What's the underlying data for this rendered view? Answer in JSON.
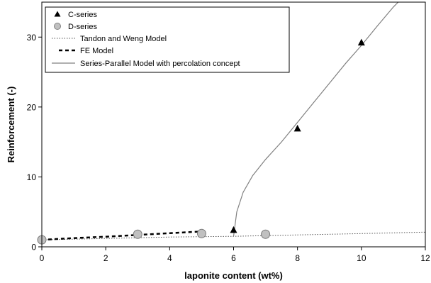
{
  "chart_data": {
    "type": "scatter",
    "title": "",
    "xlabel": "laponite content (wt%)",
    "ylabel": "Reinforcement (-)",
    "xlim": [
      0,
      12
    ],
    "ylim": [
      0,
      35
    ],
    "xticks": [
      0,
      2,
      4,
      6,
      8,
      10,
      12
    ],
    "yticks": [
      0,
      10,
      20,
      30
    ],
    "grid": false,
    "legend_position": "top-left",
    "series": [
      {
        "name": "C-series",
        "kind": "marker",
        "marker": "triangle",
        "color": "#000000",
        "x": [
          6,
          8,
          10
        ],
        "y": [
          2.4,
          16.9,
          29.2
        ]
      },
      {
        "name": "D-series",
        "kind": "marker",
        "marker": "circle",
        "color": "#c0c0c0",
        "x": [
          0,
          3,
          5,
          7
        ],
        "y": [
          1.0,
          1.8,
          1.9,
          1.8
        ]
      },
      {
        "name": "Tandon and Weng Model",
        "kind": "line",
        "style": "dotted",
        "color": "#555555",
        "x": [
          0,
          1,
          2,
          3,
          4,
          5,
          6,
          7,
          8,
          9,
          10,
          11,
          12
        ],
        "y": [
          1.0,
          1.1,
          1.2,
          1.3,
          1.4,
          1.45,
          1.5,
          1.6,
          1.7,
          1.8,
          1.9,
          2.0,
          2.1
        ]
      },
      {
        "name": "FE Model",
        "kind": "line",
        "style": "dashed",
        "color": "#000000",
        "x": [
          0,
          1,
          2,
          3,
          4,
          5
        ],
        "y": [
          1.0,
          1.25,
          1.45,
          1.7,
          1.95,
          2.2
        ]
      },
      {
        "name": "Series-Parallel Model with percolation concept",
        "kind": "line",
        "style": "solid",
        "color": "#808080",
        "x": [
          6.0,
          6.1,
          6.3,
          6.6,
          7.0,
          7.5,
          8.0,
          8.5,
          9.0,
          9.5,
          10.0,
          10.5,
          11.0,
          11.15
        ],
        "y": [
          1.5,
          5.0,
          7.8,
          10.2,
          12.5,
          15.0,
          17.8,
          20.6,
          23.4,
          26.2,
          28.8,
          31.6,
          34.3,
          35.0
        ]
      }
    ]
  }
}
